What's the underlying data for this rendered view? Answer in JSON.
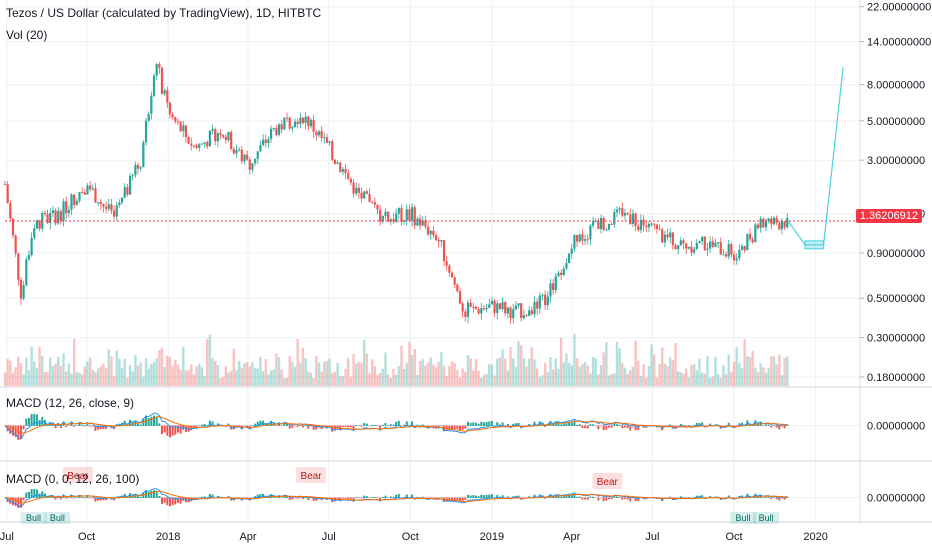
{
  "header": {
    "title": "Tezos / US Dollar (calculated by TradingView), 1D, HITBTC",
    "volume_label": "Vol (20)"
  },
  "macd1": {
    "label": "MACD (12, 26, close, 9)"
  },
  "macd2": {
    "label": "MACD (0, 0, 12, 26, 100)",
    "signals": {
      "bear_top_left": "Bear",
      "bear_top_mid": "Bear",
      "bear_top_right": "Bear",
      "bull_bottom_1": "Bull",
      "bull_bottom_2": "Bull",
      "bull_bottom_3": "Bull",
      "bull_bottom_4": "Bull"
    }
  },
  "colors": {
    "up": "#26a69a",
    "down": "#ef5350",
    "macd_line": "#2196f3",
    "signal_line": "#ff6d00",
    "price_line": "#f23645",
    "projection": "#4dd0e1",
    "grid": "#eef0f3",
    "axis_text": "#131722"
  },
  "chart_data": {
    "type": "line",
    "title": "Tezos / US Dollar (calculated by TradingView), 1D, HITBTC",
    "x_ticks": [
      "Jul",
      "Oct",
      "2018",
      "Apr",
      "Jul",
      "Oct",
      "2019",
      "Apr",
      "Jul",
      "Oct",
      "2020"
    ],
    "y_scale": "log",
    "y_ticks": [
      "22.00000000",
      "14.00000000",
      "8.00000000",
      "5.00000000",
      "3.00000000",
      "1.50000000",
      "0.90000000",
      "0.50000000",
      "0.30000000",
      "0.18000000"
    ],
    "current_price": "1.36206912",
    "macd_y_ticks": [
      "0.00000000"
    ],
    "macd2_y_ticks": [
      "0.00000000"
    ],
    "price_series": [
      {
        "x": "2017-07",
        "y": 2.2
      },
      {
        "x": "2017-07-20",
        "y": 0.5
      },
      {
        "x": "2017-08",
        "y": 1.3
      },
      {
        "x": "2017-09",
        "y": 1.5
      },
      {
        "x": "2017-10",
        "y": 2.2
      },
      {
        "x": "2017-11",
        "y": 1.4
      },
      {
        "x": "2017-12",
        "y": 3.0
      },
      {
        "x": "2017-12-18",
        "y": 11.0
      },
      {
        "x": "2018-01",
        "y": 5.5
      },
      {
        "x": "2018-02",
        "y": 3.5
      },
      {
        "x": "2018-03",
        "y": 4.5
      },
      {
        "x": "2018-04",
        "y": 2.8
      },
      {
        "x": "2018-05",
        "y": 4.5
      },
      {
        "x": "2018-06",
        "y": 5.5
      },
      {
        "x": "2018-07",
        "y": 3.5
      },
      {
        "x": "2018-08",
        "y": 2.0
      },
      {
        "x": "2018-09",
        "y": 1.4
      },
      {
        "x": "2018-10",
        "y": 1.5
      },
      {
        "x": "2018-11",
        "y": 1.1
      },
      {
        "x": "2018-12",
        "y": 0.42
      },
      {
        "x": "2019-01",
        "y": 0.45
      },
      {
        "x": "2019-02",
        "y": 0.42
      },
      {
        "x": "2019-03",
        "y": 0.48
      },
      {
        "x": "2019-04",
        "y": 1.0
      },
      {
        "x": "2019-05",
        "y": 1.3
      },
      {
        "x": "2019-06",
        "y": 1.5
      },
      {
        "x": "2019-07",
        "y": 1.2
      },
      {
        "x": "2019-08",
        "y": 1.0
      },
      {
        "x": "2019-09",
        "y": 1.0
      },
      {
        "x": "2019-10",
        "y": 0.9
      },
      {
        "x": "2019-11",
        "y": 1.3
      },
      {
        "x": "2019-12",
        "y": 1.36
      }
    ],
    "projection": [
      {
        "x": "2019-12",
        "y": 1.36
      },
      {
        "x": "2019-12-20",
        "y": 1.0
      },
      {
        "x": "2020-01-10",
        "y": 1.0
      },
      {
        "x": "2020-02",
        "y": 10.0
      }
    ],
    "grid": true
  }
}
